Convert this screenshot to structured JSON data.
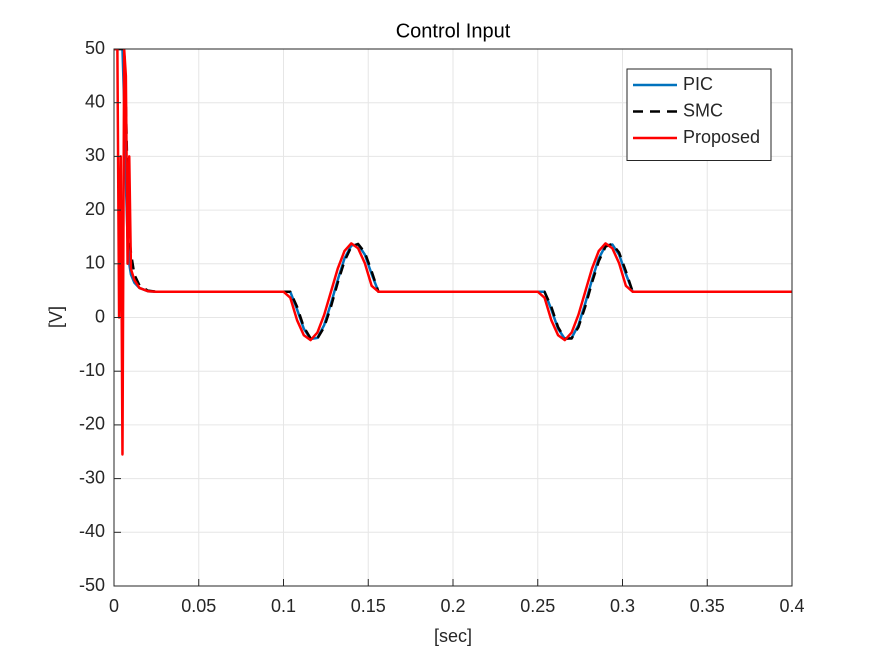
{
  "chart_data": {
    "type": "line",
    "title": "Control Input",
    "xlabel": "[sec]",
    "ylabel": "[V]",
    "x": [
      0,
      0.001,
      0.002,
      0.003,
      0.004,
      0.005,
      0.006,
      0.007,
      0.008,
      0.009,
      0.01,
      0.012,
      0.015,
      0.02,
      0.025,
      0.05,
      0.1,
      0.104,
      0.108,
      0.112,
      0.116,
      0.12,
      0.124,
      0.128,
      0.132,
      0.136,
      0.14,
      0.144,
      0.148,
      0.152,
      0.156,
      0.2,
      0.25,
      0.254,
      0.258,
      0.262,
      0.266,
      0.27,
      0.274,
      0.278,
      0.282,
      0.286,
      0.29,
      0.294,
      0.298,
      0.302,
      0.306,
      0.35,
      0.4
    ],
    "series": [
      {
        "name": "PIC",
        "color": "#0072bd",
        "linestyle": "solid",
        "values": [
          50,
          50,
          50,
          50,
          50,
          50,
          40,
          25,
          15,
          10,
          8,
          6.5,
          5.5,
          4.9,
          4.8,
          4.8,
          4.8,
          4.8,
          1.5,
          -2.1,
          -4.0,
          -3.8,
          -1.4,
          2.6,
          7.0,
          11.0,
          13.4,
          13.6,
          11.7,
          8.1,
          4.8,
          4.8,
          4.8,
          4.8,
          1.5,
          -2.1,
          -4.0,
          -3.8,
          -1.4,
          2.6,
          7.0,
          11.0,
          13.4,
          13.6,
          11.7,
          8.1,
          4.8,
          4.8,
          4.8
        ]
      },
      {
        "name": "SMC",
        "color": "#000000",
        "linestyle": "dashed",
        "values": [
          50,
          50,
          50,
          50,
          50,
          50,
          50,
          40,
          25,
          15,
          12,
          8,
          6,
          5,
          4.8,
          4.8,
          4.8,
          4.8,
          2.0,
          -1.8,
          -3.9,
          -3.9,
          -1.8,
          2.0,
          6.5,
          10.5,
          13.2,
          13.7,
          12.1,
          8.6,
          4.8,
          4.8,
          4.8,
          4.8,
          2.0,
          -1.8,
          -3.9,
          -3.9,
          -1.8,
          2.0,
          6.5,
          10.5,
          13.2,
          13.7,
          12.1,
          8.6,
          4.8,
          4.8,
          4.8
        ]
      },
      {
        "name": "Proposed",
        "color": "#ff0000",
        "linestyle": "solid",
        "values": [
          50,
          50,
          50,
          0,
          30,
          -25.5,
          50,
          45,
          10,
          30,
          9,
          7,
          5.5,
          4.9,
          4.8,
          4.8,
          4.8,
          3.7,
          -0.5,
          -3.3,
          -4.2,
          -2.8,
          0.5,
          4.8,
          9.1,
          12.4,
          13.8,
          12.9,
          10.1,
          5.9,
          4.8,
          4.8,
          4.8,
          3.7,
          -0.5,
          -3.3,
          -4.2,
          -2.8,
          0.5,
          4.8,
          9.1,
          12.4,
          13.8,
          12.9,
          10.1,
          5.9,
          4.8,
          4.8,
          4.8
        ]
      }
    ],
    "xlim": [
      0,
      0.4
    ],
    "xticks": [
      0,
      0.05,
      0.1,
      0.15,
      0.2,
      0.25,
      0.3,
      0.35,
      0.4
    ],
    "ylim": [
      -50,
      50
    ],
    "yticks": [
      -50,
      -40,
      -30,
      -20,
      -10,
      0,
      10,
      20,
      30,
      40,
      50
    ],
    "grid": true,
    "legend": "northeast"
  }
}
